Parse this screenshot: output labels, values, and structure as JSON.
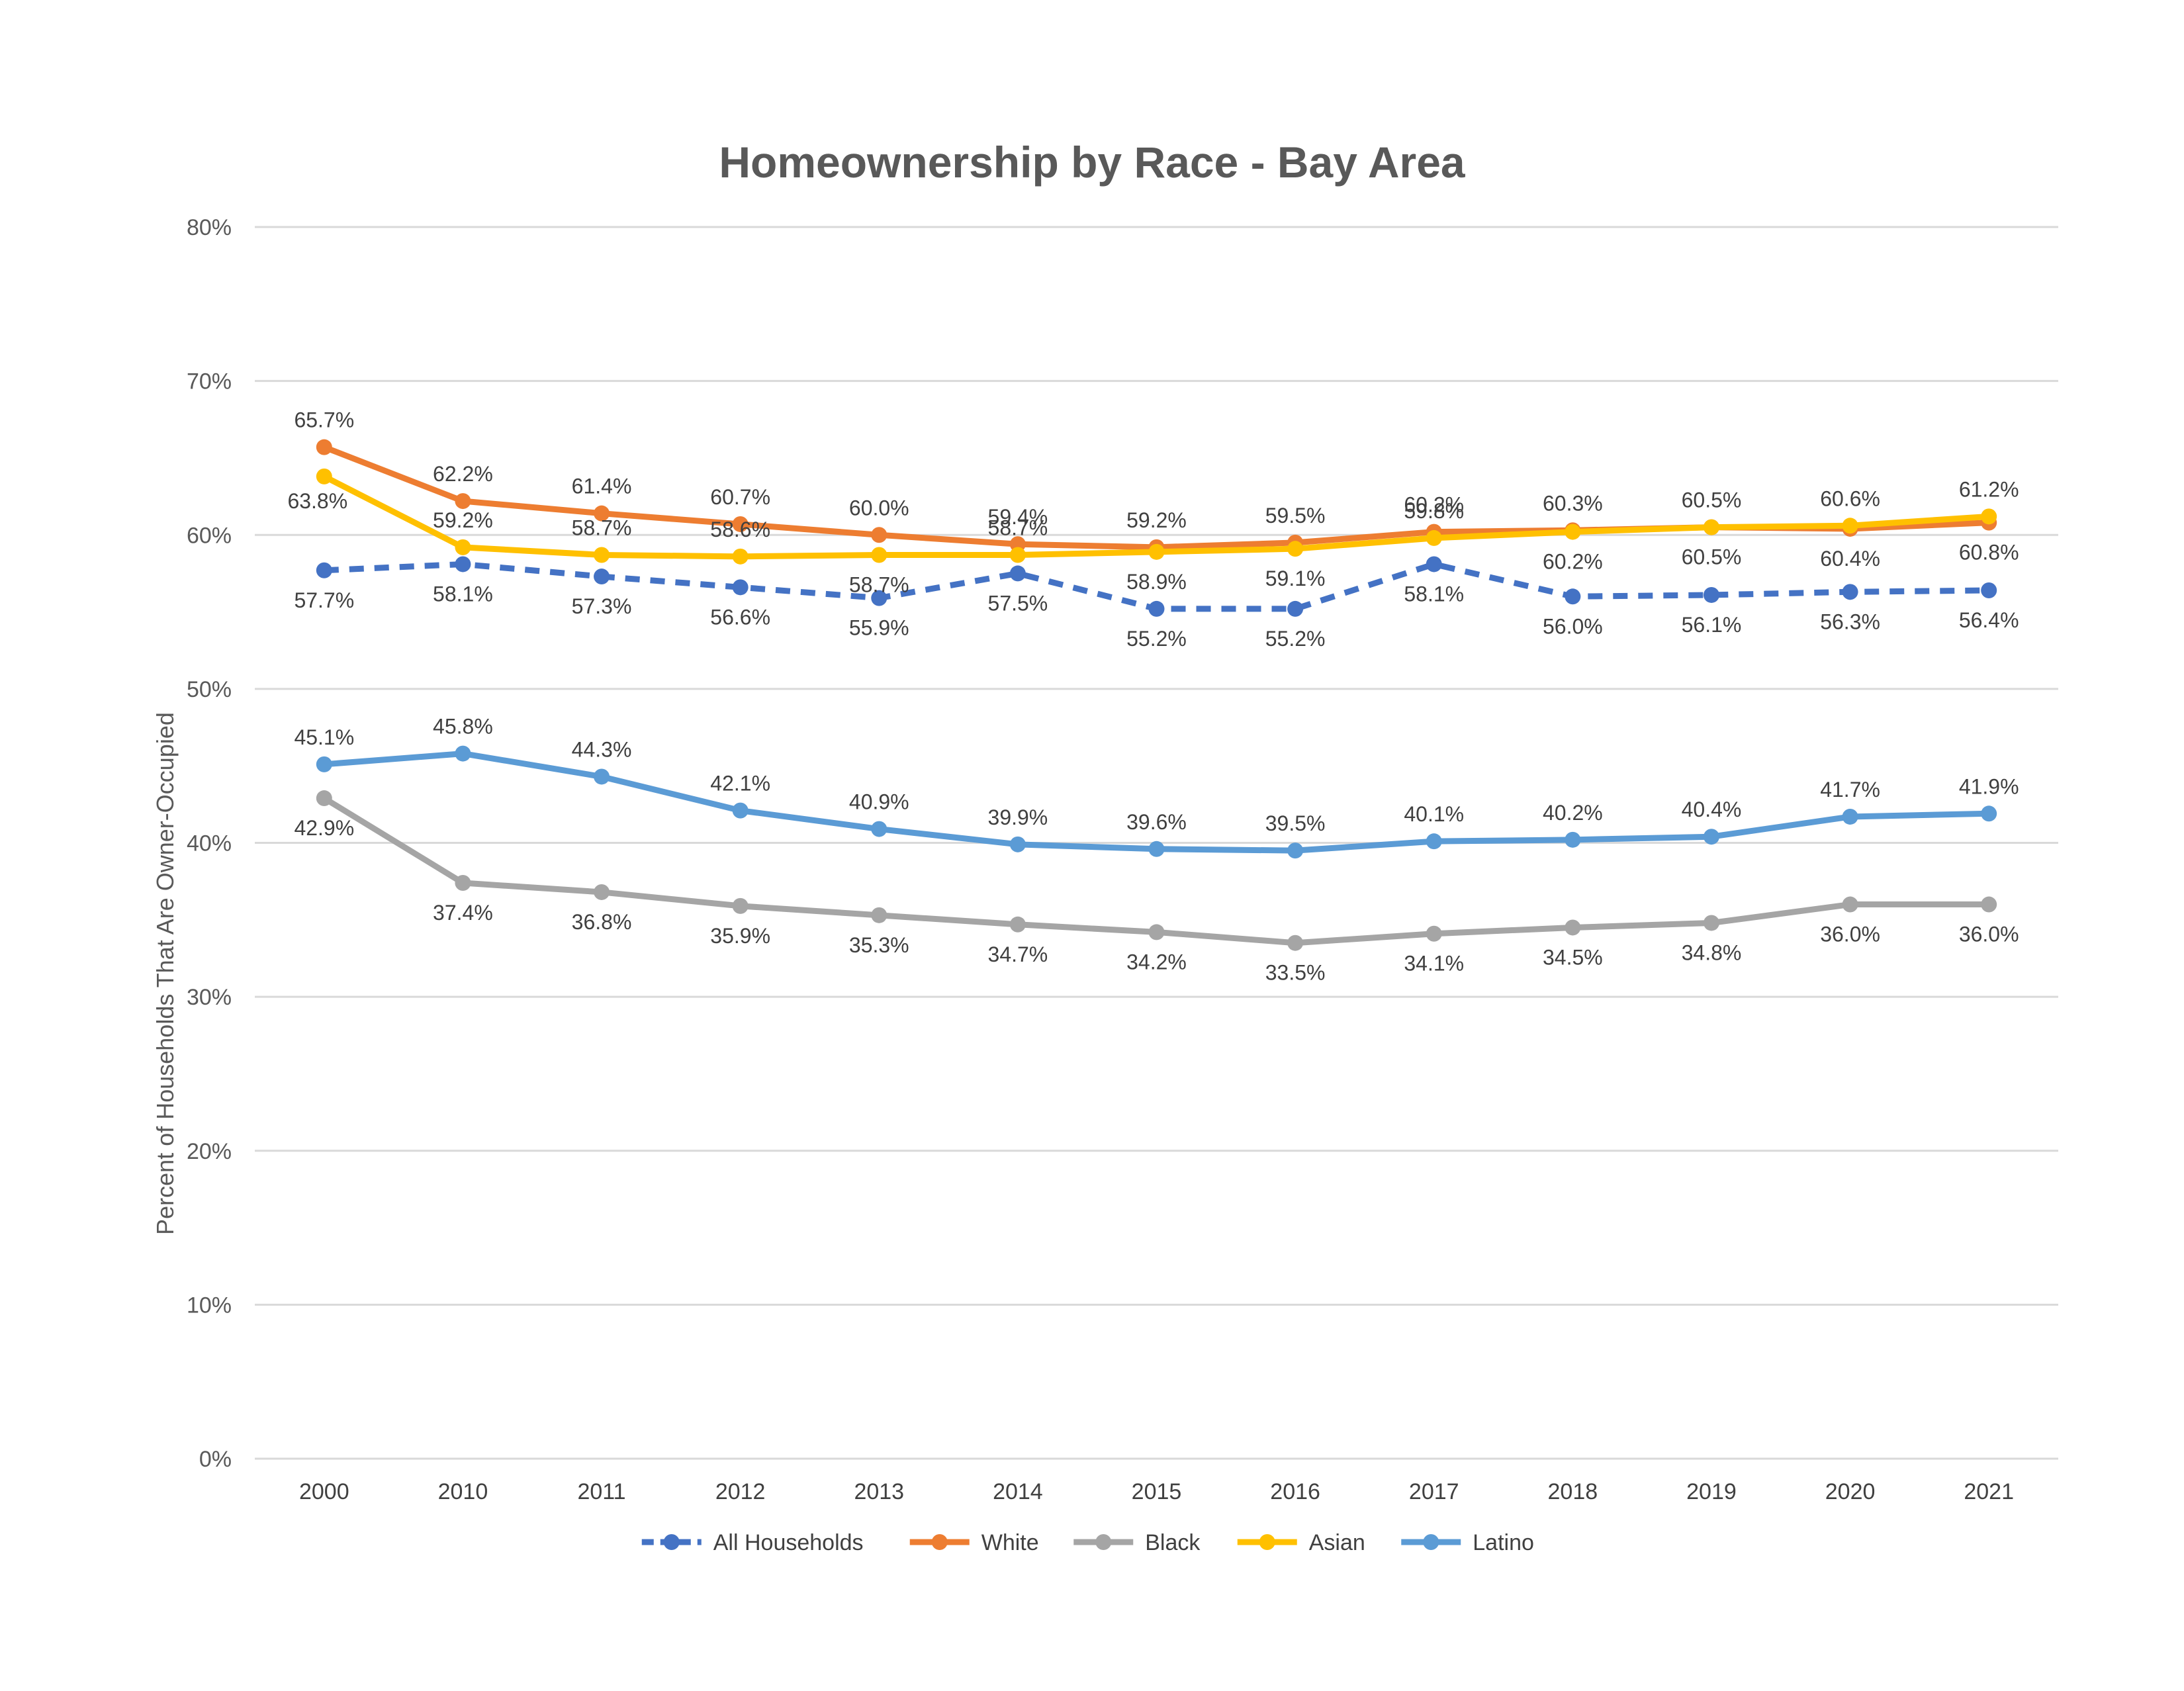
{
  "chart_data": {
    "type": "line",
    "title": "Homeownership by Race - Bay Area",
    "xlabel": "",
    "ylabel": "Percent of Households That Are Owner-Occupied",
    "ylim": [
      0,
      80
    ],
    "yticks": [
      "0%",
      "10%",
      "20%",
      "30%",
      "40%",
      "50%",
      "60%",
      "70%",
      "80%"
    ],
    "grid": true,
    "legend_position": "bottom",
    "categories": [
      "2000",
      "2010",
      "2011",
      "2012",
      "2013",
      "2014",
      "2015",
      "2016",
      "2017",
      "2018",
      "2019",
      "2020",
      "2021"
    ],
    "series": [
      {
        "name": "All Households",
        "color": "#4472c4",
        "dashed": true,
        "values": [
          57.7,
          58.1,
          57.3,
          56.6,
          55.9,
          57.5,
          55.2,
          55.2,
          58.1,
          56.0,
          56.1,
          56.3,
          56.4
        ],
        "labels": [
          "57.7%",
          "58.1%",
          "57.3%",
          "56.6%",
          "55.9%",
          "57.5%",
          "55.2%",
          "55.2%",
          "58.1%",
          "56.0%",
          "56.1%",
          "56.3%",
          "56.4%"
        ],
        "label_pos": "below"
      },
      {
        "name": "White",
        "color": "#ed7d31",
        "dashed": false,
        "values": [
          65.7,
          62.2,
          61.4,
          60.7,
          60.0,
          59.4,
          59.2,
          59.5,
          60.2,
          60.3,
          60.5,
          60.4,
          60.8
        ],
        "labels": [
          "65.7%",
          "62.2%",
          "61.4%",
          "60.7%",
          "60.0%",
          "59.4%",
          "59.2%",
          "59.5%",
          "60.2%",
          "60.3%",
          "60.5%",
          "60.4%",
          "60.8%"
        ],
        "label_pos": [
          "above",
          "above",
          "above",
          "above",
          "above",
          "above",
          "above",
          "above",
          "above",
          "above",
          "above",
          "below",
          "below"
        ]
      },
      {
        "name": "Black",
        "color": "#a5a5a5",
        "dashed": false,
        "values": [
          42.9,
          37.4,
          36.8,
          35.9,
          35.3,
          34.7,
          34.2,
          33.5,
          34.1,
          34.5,
          34.8,
          36.0,
          36.0
        ],
        "labels": [
          "42.9%",
          "37.4%",
          "36.8%",
          "35.9%",
          "35.3%",
          "34.7%",
          "34.2%",
          "33.5%",
          "34.1%",
          "34.5%",
          "34.8%",
          "36.0%",
          "36.0%"
        ],
        "label_pos": "below"
      },
      {
        "name": "Asian",
        "color": "#ffc000",
        "dashed": false,
        "values": [
          63.8,
          59.2,
          58.7,
          58.6,
          58.7,
          58.7,
          58.9,
          59.1,
          59.8,
          60.2,
          60.5,
          60.6,
          61.2
        ],
        "labels": [
          "63.8%",
          "59.2%",
          "58.7%",
          "58.6%",
          "58.7%",
          "58.7%",
          "58.9%",
          "59.1%",
          "59.8%",
          "60.2%",
          "60.5%",
          "60.6%",
          "61.2%"
        ],
        "label_pos": [
          "left",
          "above",
          "above",
          "above",
          "below",
          "above",
          "below",
          "below",
          "above",
          "below",
          "below",
          "above",
          "above"
        ]
      },
      {
        "name": "Latino",
        "color": "#5b9bd5",
        "dashed": false,
        "values": [
          45.1,
          45.8,
          44.3,
          42.1,
          40.9,
          39.9,
          39.6,
          39.5,
          40.1,
          40.2,
          40.4,
          41.7,
          41.9
        ],
        "labels": [
          "45.1%",
          "45.8%",
          "44.3%",
          "42.1%",
          "40.9%",
          "39.9%",
          "39.6%",
          "39.5%",
          "40.1%",
          "40.2%",
          "40.4%",
          "41.7%",
          "41.9%"
        ],
        "label_pos": "above"
      }
    ],
    "legend_order": [
      "All Households",
      "White",
      "Black",
      "Asian",
      "Latino"
    ]
  }
}
